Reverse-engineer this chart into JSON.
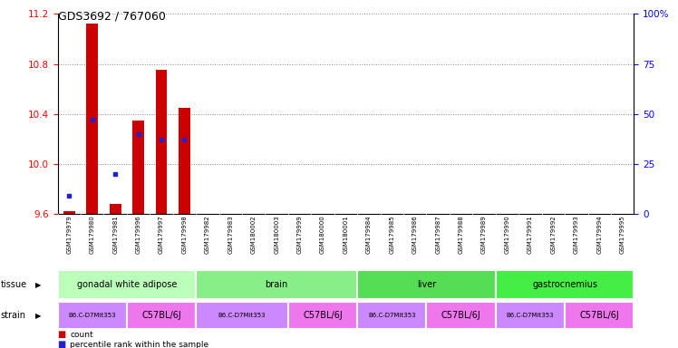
{
  "title": "GDS3692 / 767060",
  "samples": [
    "GSM179979",
    "GSM179980",
    "GSM179981",
    "GSM179996",
    "GSM179997",
    "GSM179998",
    "GSM179982",
    "GSM179983",
    "GSM180002",
    "GSM180003",
    "GSM179999",
    "GSM180000",
    "GSM180001",
    "GSM179984",
    "GSM179985",
    "GSM179986",
    "GSM179987",
    "GSM179988",
    "GSM179989",
    "GSM179990",
    "GSM179991",
    "GSM179992",
    "GSM179993",
    "GSM179994",
    "GSM179995"
  ],
  "count_values": [
    9.62,
    11.12,
    9.68,
    10.35,
    10.75,
    10.45,
    null,
    null,
    null,
    null,
    null,
    null,
    null,
    null,
    null,
    null,
    null,
    null,
    null,
    null,
    null,
    null,
    null,
    null,
    null
  ],
  "pct_values_raw": [
    9,
    47,
    20,
    40,
    37,
    37,
    null,
    null,
    null,
    null,
    null,
    null,
    null,
    null,
    null,
    null,
    null,
    null,
    null,
    null,
    null,
    null,
    null,
    null,
    null
  ],
  "ylim_left": [
    9.6,
    11.2
  ],
  "ylim_right": [
    0,
    100
  ],
  "yticks_left": [
    9.6,
    10.0,
    10.4,
    10.8,
    11.2
  ],
  "yticks_right": [
    0,
    25,
    50,
    75,
    100
  ],
  "ytick_labels_right": [
    "0",
    "25",
    "50",
    "75",
    "100%"
  ],
  "bar_color": "#cc0000",
  "dot_color": "#2222cc",
  "tissue_groups": [
    {
      "label": "gonadal white adipose",
      "start": 0,
      "end": 6,
      "color": "#bbffbb"
    },
    {
      "label": "brain",
      "start": 6,
      "end": 13,
      "color": "#88ee88"
    },
    {
      "label": "liver",
      "start": 13,
      "end": 19,
      "color": "#55dd55"
    },
    {
      "label": "gastrocnemius",
      "start": 19,
      "end": 25,
      "color": "#44ee44"
    }
  ],
  "strain_groups": [
    {
      "label": "B6.C-D7Mit353",
      "start": 0,
      "end": 3,
      "color": "#cc88ff"
    },
    {
      "label": "C57BL/6J",
      "start": 3,
      "end": 6,
      "color": "#ee77ee"
    },
    {
      "label": "B6.C-D7Mit353",
      "start": 6,
      "end": 10,
      "color": "#cc88ff"
    },
    {
      "label": "C57BL/6J",
      "start": 10,
      "end": 13,
      "color": "#ee77ee"
    },
    {
      "label": "B6.C-D7Mit353",
      "start": 13,
      "end": 16,
      "color": "#cc88ff"
    },
    {
      "label": "C57BL/6J",
      "start": 16,
      "end": 19,
      "color": "#ee77ee"
    },
    {
      "label": "B6.C-D7Mit353",
      "start": 19,
      "end": 22,
      "color": "#cc88ff"
    },
    {
      "label": "C57BL/6J",
      "start": 22,
      "end": 25,
      "color": "#ee77ee"
    }
  ],
  "grid_color": "#888888",
  "tick_bg_color": "#cccccc",
  "fig_width": 7.48,
  "fig_height": 3.84,
  "dpi": 100
}
